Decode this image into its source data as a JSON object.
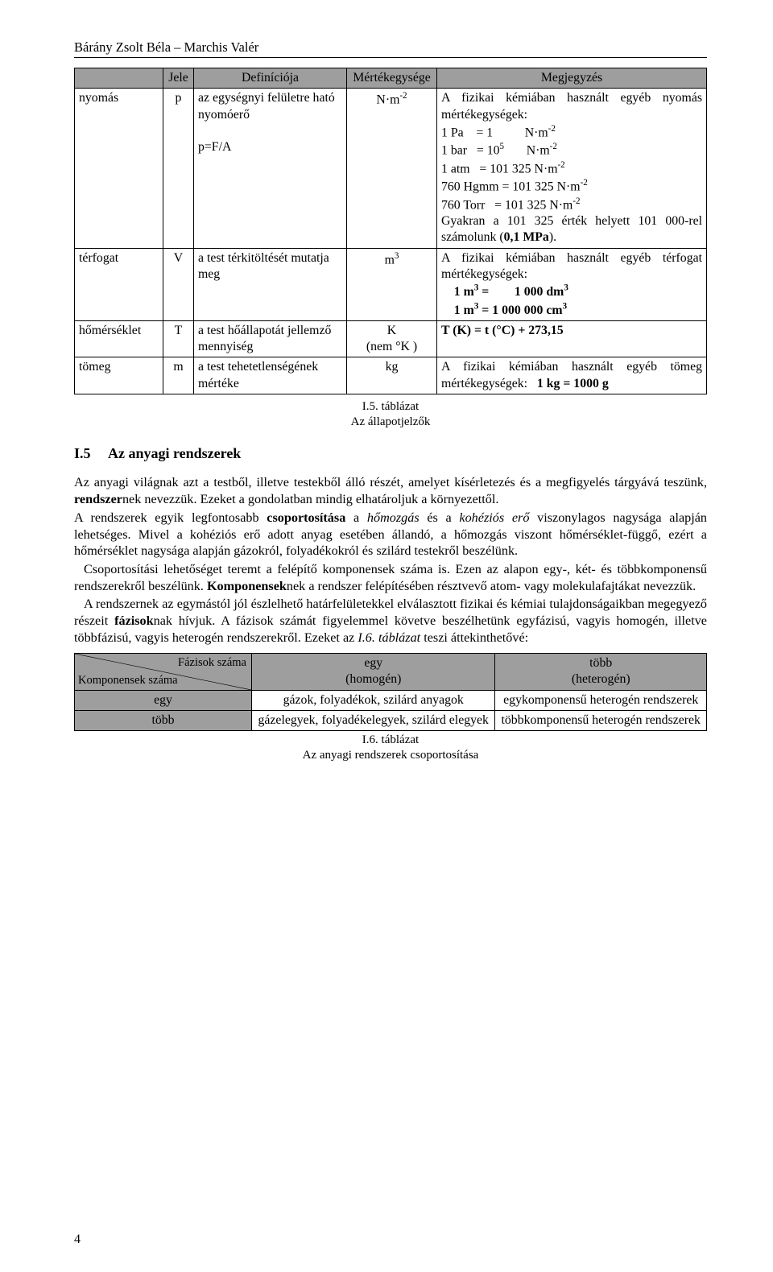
{
  "header": {
    "text": "Bárány Zsolt Béla – Marchis Valér"
  },
  "table1": {
    "headers": [
      "Jele",
      "Definíciója",
      "Mértékegysége",
      "Megjegyzés"
    ],
    "rows": [
      {
        "name_hu": "nyomás",
        "sym": "p",
        "def_lines": [
          "az egységnyi felületre ható nyomóerő",
          "",
          "p=F/A"
        ],
        "unit_html": "N·m<sup>-2</sup>",
        "note_html": "A fizikai kémiában használt egyéb nyomás mértékegységek:<br>1 Pa&nbsp;&nbsp;&nbsp;&nbsp;= 1&nbsp;&nbsp;&nbsp;&nbsp;&nbsp;&nbsp;&nbsp;&nbsp;&nbsp;&nbsp;N·m<sup>-2</sup><br>1 bar&nbsp;&nbsp;&nbsp;= 10<sup>5</sup>&nbsp;&nbsp;&nbsp;&nbsp;&nbsp;&nbsp;&nbsp;N·m<sup>-2</sup><br>1 atm&nbsp;&nbsp;&nbsp;= 101 325 N·m<sup>-2</sup><br>760 Hgmm = 101 325 N·m<sup>-2</sup><br>760 Torr&nbsp;&nbsp;&nbsp;= 101 325 N·m<sup>-2</sup><br>Gyakran a 101 325 érték helyett 101 000-rel számolunk (<b>0,1 MPa</b>)."
      },
      {
        "name_hu": "térfogat",
        "sym": "V",
        "def_lines": [
          "a test térkitöltését mutatja meg"
        ],
        "unit_html": "m<sup>3</sup>",
        "note_html": "A fizikai kémiában használt egyéb térfogat mértékegységek:<br>&nbsp;&nbsp;&nbsp;&nbsp;<b>1 m<sup>3</sup> =&nbsp;&nbsp;&nbsp;&nbsp;&nbsp;&nbsp;&nbsp;&nbsp;1 000 dm<sup>3</sup></b><br>&nbsp;&nbsp;&nbsp;&nbsp;<b>1 m<sup>3</sup> = 1 000 000 cm<sup>3</sup></b>"
      },
      {
        "name_hu": "hőmérséklet",
        "sym": "T",
        "def_lines": [
          "a test hőállapotát jellemző mennyiség"
        ],
        "unit_html": "K<br>(nem °K )",
        "note_html": "<b>T (K) = t (°C) + 273,15</b>"
      },
      {
        "name_hu": "tömeg",
        "sym": "m",
        "def_lines": [
          "a test tehetetlenségének mértéke"
        ],
        "unit_html": "kg",
        "note_html": "A fizikai kémiában használt egyéb tömeg mértékegységek:&nbsp;&nbsp;&nbsp;<b>1 kg = 1000 g</b>"
      }
    ],
    "caption_line1": "I.5. táblázat",
    "caption_line2": "Az állapotjelzők"
  },
  "section": {
    "num": "I.5",
    "title": "Az anyagi rendszerek",
    "p1": "Az anyagi világnak azt a testből, illetve testekből álló részét, amelyet kísérletezés és a megfigyelés tárgyává teszünk, ",
    "p1b": "rendszer",
    "p1c": "nek nevezzük. Ezeket a gondolatban mindig elhatároljuk a környezettől.",
    "p2a": "A rendszerek egyik legfontosabb ",
    "p2b": "csoportosítása",
    "p2c": " a ",
    "p2d": "hőmozgás",
    "p2e": " és a ",
    "p2f": "kohéziós erő",
    "p2g": " viszonylagos nagysága alapján lehetséges. Mivel a kohéziós erő adott anyag esetében állandó, a hőmozgás viszont hőmérséklet-függő, ezért a hőmérséklet nagysága alapján gázokról, folyadékokról és szilárd testekről beszélünk.",
    "p3a": "Csoportosítási lehetőséget teremt a felépítő komponensek száma is. Ezen az alapon egy-, két- és többkomponensű rendszerekről beszélünk. ",
    "p3b": "Komponensek",
    "p3c": "nek a rendszer felépítésében résztvevő atom- vagy molekulafajtákat nevezzük.",
    "p4a": "A rendszernek az egymástól jól észlelhető határfelületekkel elválasztott fizikai és kémiai tulajdonságaikban megegyező részeit ",
    "p4b": "fázisok",
    "p4c": "nak hívjuk. A fázisok számát figyelemmel követve beszélhetünk egyfázisú, vagyis homogén, illetve többfázisú, vagyis heterogén rendszerekről. Ezeket az ",
    "p4d": "I.6. táblázat",
    "p4e": " teszi áttekinthetővé:"
  },
  "table2": {
    "diag_top": "Fázisok száma",
    "diag_bottom": "Komponensek száma",
    "col1_header": "egy\n(homogén)",
    "col2_header": "több\n(heterogén)",
    "row1_label": "egy",
    "row1_col1": "gázok, folyadékok, szilárd anyagok",
    "row1_col2": "egykomponensű heterogén rendszerek",
    "row2_label": "több",
    "row2_col1": "gázelegyek, folyadékelegyek, szilárd elegyek",
    "row2_col2": "többkomponensű heterogén rendszerek",
    "caption_line1": "I.6. táblázat",
    "caption_line2": "Az anyagi rendszerek csoportosítása"
  },
  "page_number": "4"
}
